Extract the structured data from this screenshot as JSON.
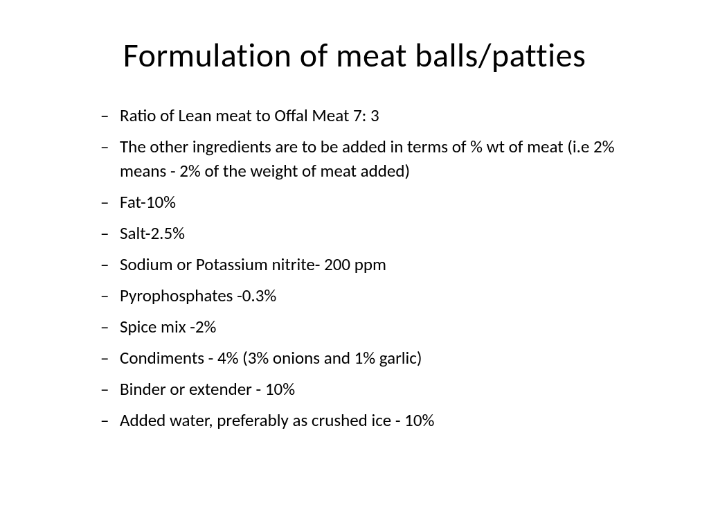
{
  "slide": {
    "title": "Formulation of meat balls/patties",
    "title_fontsize": 48,
    "item_fontsize": 25,
    "background_color": "#ffffff",
    "text_color": "#000000",
    "items": [
      "Ratio of Lean meat to Offal Meat 7: 3",
      "The other ingredients are to be added in terms of % wt of meat (i.e 2% means - 2% of the weight of meat added)",
      "Fat-10%",
      "Salt-2.5%",
      "Sodium or Potassium nitrite- 200 ppm",
      "Pyrophosphates -0.3%",
      "Spice mix -2%",
      "Condiments - 4% (3% onions and 1% garlic)",
      "Binder or extender - 10%",
      "Added water, preferably as crushed ice - 10%"
    ]
  }
}
